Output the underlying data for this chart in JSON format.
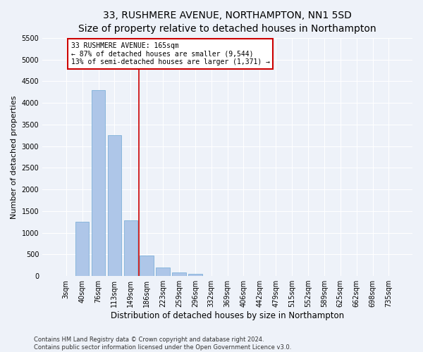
{
  "title": "33, RUSHMERE AVENUE, NORTHAMPTON, NN1 5SD",
  "subtitle": "Size of property relative to detached houses in Northampton",
  "xlabel": "Distribution of detached houses by size in Northampton",
  "ylabel": "Number of detached properties",
  "categories": [
    "3sqm",
    "40sqm",
    "76sqm",
    "113sqm",
    "149sqm",
    "186sqm",
    "223sqm",
    "259sqm",
    "296sqm",
    "332sqm",
    "369sqm",
    "406sqm",
    "442sqm",
    "479sqm",
    "515sqm",
    "552sqm",
    "589sqm",
    "625sqm",
    "662sqm",
    "698sqm",
    "735sqm"
  ],
  "values": [
    0,
    1250,
    4300,
    3250,
    1280,
    480,
    200,
    80,
    50,
    0,
    0,
    0,
    0,
    0,
    0,
    0,
    0,
    0,
    0,
    0,
    0
  ],
  "bar_color": "#aec6e8",
  "bar_edgecolor": "#6fa8d4",
  "vline_x": 4.5,
  "vline_color": "#cc0000",
  "annotation_text": "33 RUSHMERE AVENUE: 165sqm\n← 87% of detached houses are smaller (9,544)\n13% of semi-detached houses are larger (1,371) →",
  "annotation_box_color": "#ffffff",
  "annotation_box_edgecolor": "#cc0000",
  "ylim": [
    0,
    5500
  ],
  "yticks": [
    0,
    500,
    1000,
    1500,
    2000,
    2500,
    3000,
    3500,
    4000,
    4500,
    5000,
    5500
  ],
  "footer_line1": "Contains HM Land Registry data © Crown copyright and database right 2024.",
  "footer_line2": "Contains public sector information licensed under the Open Government Licence v3.0.",
  "bg_color": "#eef2f9",
  "plot_bg_color": "#eef2f9",
  "grid_color": "#ffffff",
  "title_fontsize": 10,
  "subtitle_fontsize": 9,
  "xlabel_fontsize": 8.5,
  "ylabel_fontsize": 8,
  "tick_fontsize": 7,
  "annotation_fontsize": 7,
  "footer_fontsize": 6
}
